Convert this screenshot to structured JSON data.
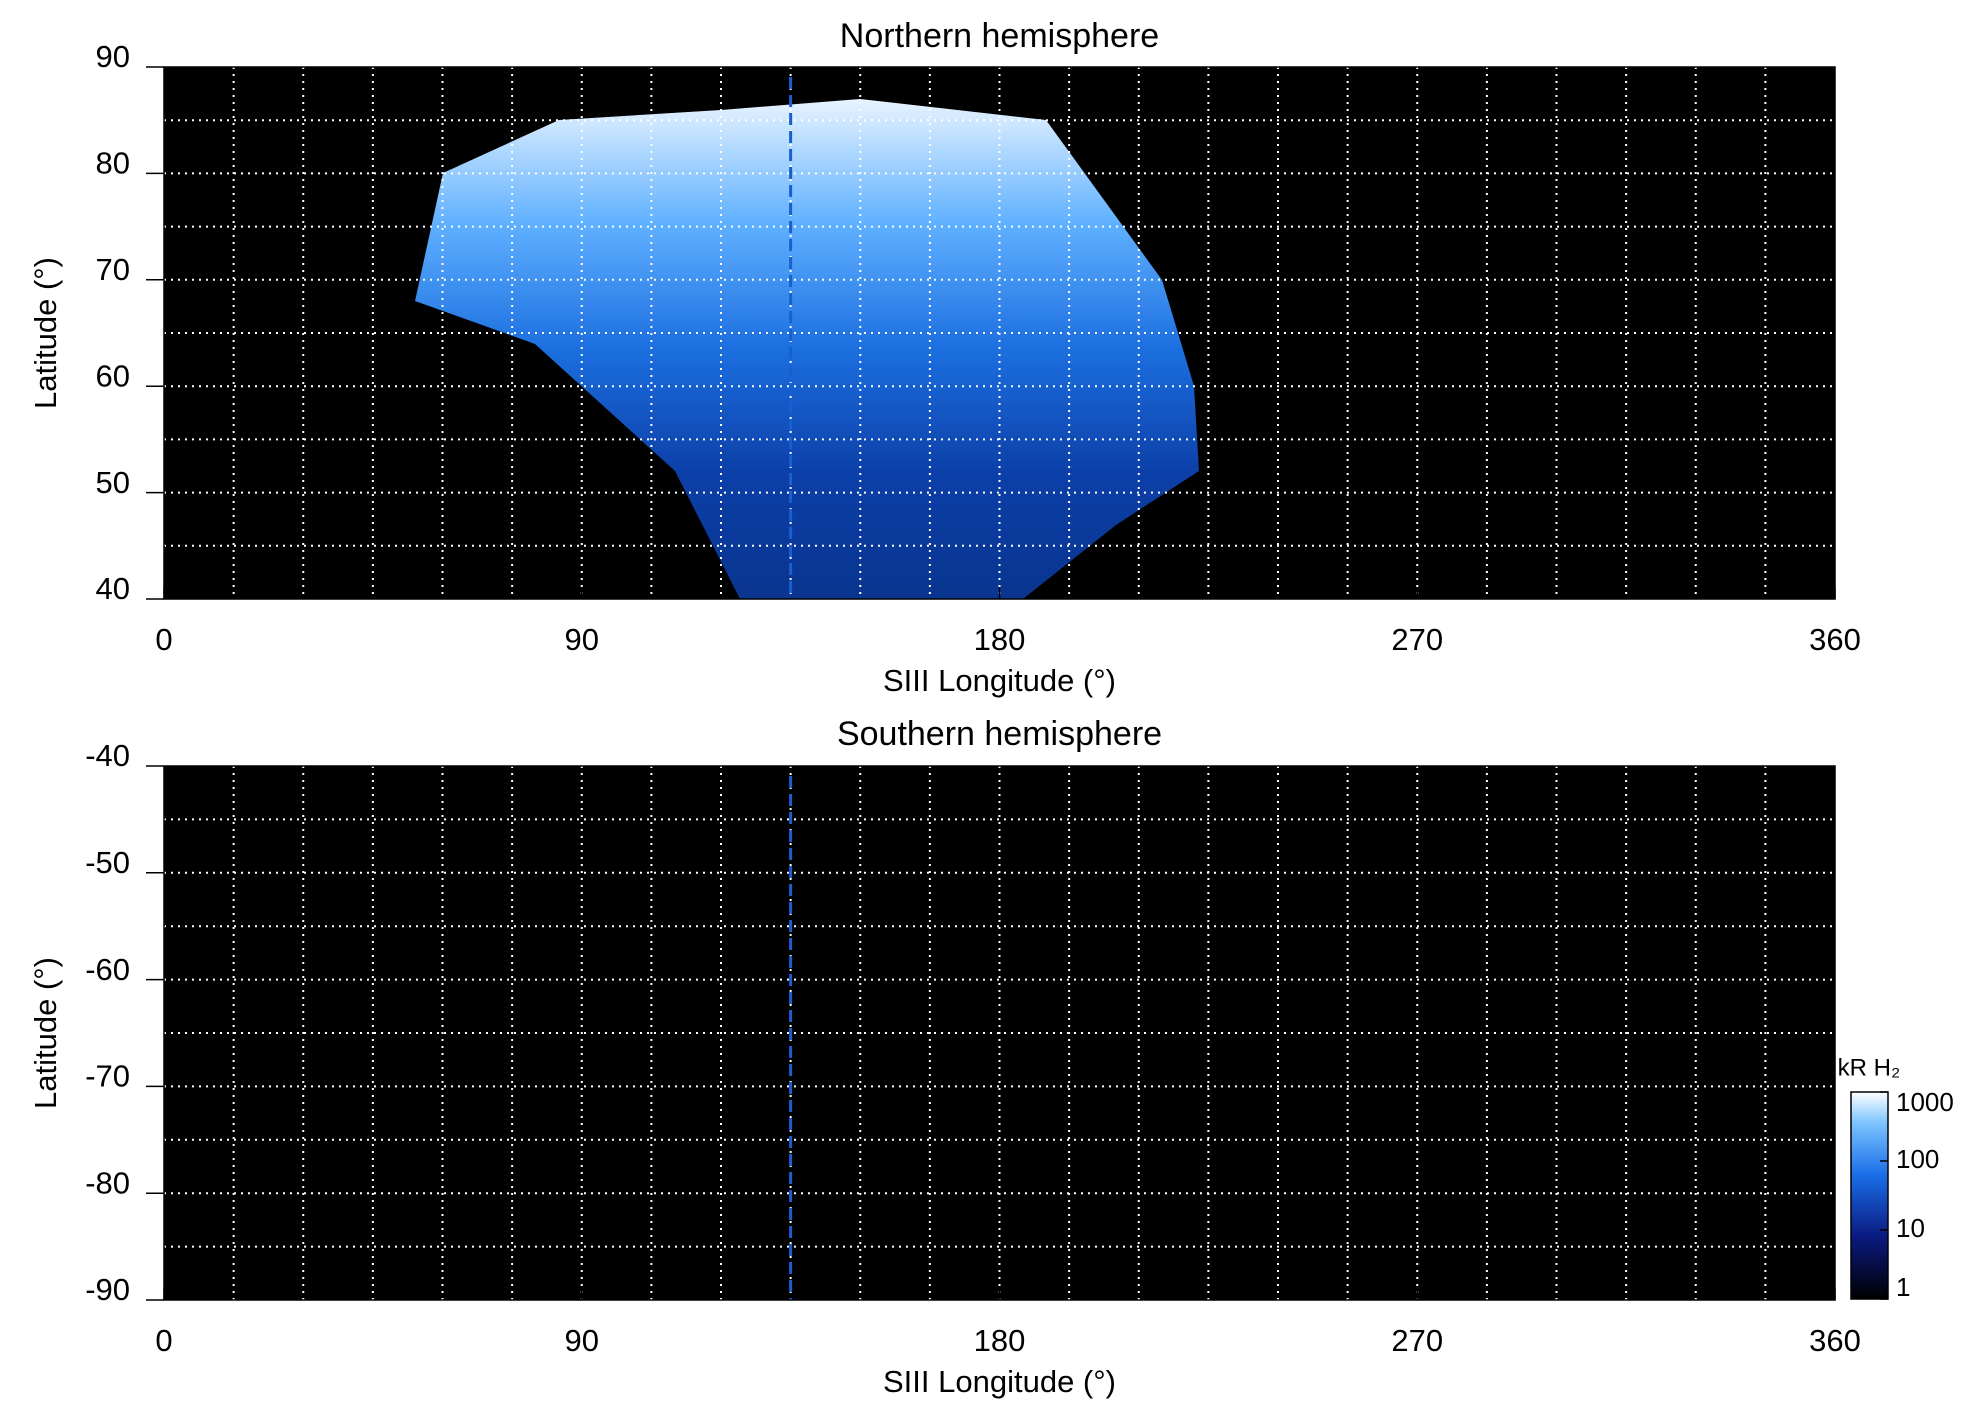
{
  "chart_data": [
    {
      "type": "heatmap",
      "title": "Northern hemisphere",
      "xlabel": "SIII Longitude (°)",
      "ylabel": "Latitude (°)",
      "xlim": [
        0,
        360
      ],
      "xticks": [
        0,
        90,
        180,
        270,
        360
      ],
      "xgrid": [
        15,
        30,
        45,
        60,
        75,
        90,
        105,
        120,
        135,
        150,
        165,
        180,
        195,
        210,
        225,
        240,
        255,
        270,
        285,
        300,
        315,
        330,
        345
      ],
      "ylim": [
        40,
        90
      ],
      "yticks": [
        40,
        50,
        60,
        70,
        80,
        90
      ],
      "ygrid": [
        45,
        50,
        55,
        60,
        65,
        70,
        75,
        80,
        85
      ],
      "reference_longitude": 135,
      "background": "#000000",
      "grid_color": "#ffffff"
    },
    {
      "type": "heatmap",
      "title": "Southern hemisphere",
      "xlabel": "SIII Longitude (°)",
      "ylabel": "Latitude (°)",
      "xlim": [
        0,
        360
      ],
      "xticks": [
        0,
        90,
        180,
        270,
        360
      ],
      "xgrid": [
        15,
        30,
        45,
        60,
        75,
        90,
        105,
        120,
        135,
        150,
        165,
        180,
        195,
        210,
        225,
        240,
        255,
        270,
        285,
        300,
        315,
        330,
        345
      ],
      "ylim": [
        -90,
        -40
      ],
      "yticks": [
        -40,
        -50,
        -60,
        -70,
        -80,
        -90
      ],
      "ygrid": [
        -45,
        -50,
        -55,
        -60,
        -65,
        -70,
        -75,
        -80,
        -85
      ],
      "reference_longitude": 135,
      "background": "#000000",
      "grid_color": "#ffffff",
      "colorbar": {
        "label": "kR H₂",
        "lim": [
          1,
          1000
        ],
        "scale": "log",
        "ticks": [
          1,
          10,
          100,
          1000
        ]
      }
    }
  ]
}
